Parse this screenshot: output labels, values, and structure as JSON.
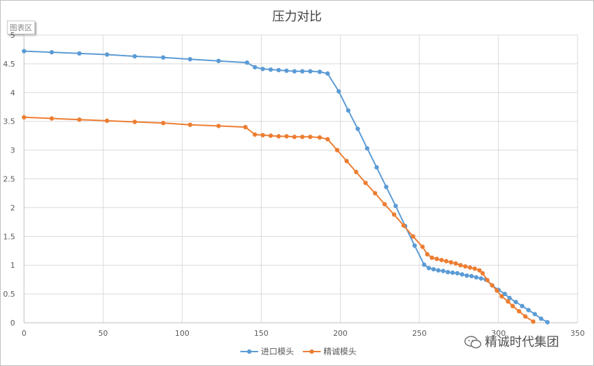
{
  "chart_area_label": "图表区",
  "watermark": "精诚时代集团",
  "chart_data": {
    "type": "line",
    "title": "压力对比",
    "xlabel": "",
    "ylabel": "",
    "xlim": [
      0,
      350
    ],
    "ylim": [
      0,
      5
    ],
    "x_ticks": [
      0,
      50,
      100,
      150,
      200,
      250,
      300,
      350
    ],
    "y_ticks": [
      0,
      0.5,
      1,
      1.5,
      2,
      2.5,
      3,
      3.5,
      4,
      4.5,
      5
    ],
    "grid": true,
    "legend_position": "bottom",
    "series": [
      {
        "name": "进口模头",
        "color": "#5b9bd5",
        "points": [
          [
            0,
            4.72
          ],
          [
            17.5,
            4.7
          ],
          [
            35,
            4.68
          ],
          [
            52.5,
            4.66
          ],
          [
            70,
            4.63
          ],
          [
            88,
            4.61
          ],
          [
            105,
            4.58
          ],
          [
            123,
            4.55
          ],
          [
            141,
            4.52
          ],
          [
            146,
            4.44
          ],
          [
            151,
            4.41
          ],
          [
            156,
            4.4
          ],
          [
            161,
            4.39
          ],
          [
            166,
            4.38
          ],
          [
            171,
            4.37
          ],
          [
            176,
            4.37
          ],
          [
            181,
            4.37
          ],
          [
            187,
            4.36
          ],
          [
            192,
            4.33
          ],
          [
            199,
            4.02
          ],
          [
            205,
            3.69
          ],
          [
            211,
            3.37
          ],
          [
            217,
            3.03
          ],
          [
            223,
            2.7
          ],
          [
            229,
            2.36
          ],
          [
            235,
            2.03
          ],
          [
            241,
            1.68
          ],
          [
            247,
            1.34
          ],
          [
            253,
            1.01
          ],
          [
            256,
            0.95
          ],
          [
            259,
            0.93
          ],
          [
            262,
            0.91
          ],
          [
            265,
            0.9
          ],
          [
            268,
            0.88
          ],
          [
            271,
            0.87
          ],
          [
            274,
            0.86
          ],
          [
            277,
            0.84
          ],
          [
            280,
            0.82
          ],
          [
            283,
            0.81
          ],
          [
            286,
            0.79
          ],
          [
            289,
            0.77
          ],
          [
            292,
            0.75
          ],
          [
            296,
            0.65
          ],
          [
            300,
            0.57
          ],
          [
            304,
            0.5
          ],
          [
            307,
            0.43
          ],
          [
            311,
            0.36
          ],
          [
            315,
            0.29
          ],
          [
            319,
            0.22
          ],
          [
            323,
            0.15
          ],
          [
            327,
            0.07
          ],
          [
            331,
            0.01
          ]
        ]
      },
      {
        "name": "精诚模头",
        "color": "#ed7d31",
        "points": [
          [
            0,
            3.57
          ],
          [
            17.5,
            3.55
          ],
          [
            35,
            3.53
          ],
          [
            52.5,
            3.51
          ],
          [
            70,
            3.49
          ],
          [
            88,
            3.47
          ],
          [
            105,
            3.44
          ],
          [
            123,
            3.42
          ],
          [
            140,
            3.4
          ],
          [
            146,
            3.27
          ],
          [
            151,
            3.26
          ],
          [
            156,
            3.25
          ],
          [
            161,
            3.24
          ],
          [
            166,
            3.24
          ],
          [
            171,
            3.23
          ],
          [
            176,
            3.23
          ],
          [
            181,
            3.23
          ],
          [
            187,
            3.22
          ],
          [
            192,
            3.19
          ],
          [
            198,
            3.0
          ],
          [
            204,
            2.81
          ],
          [
            210,
            2.62
          ],
          [
            216,
            2.43
          ],
          [
            222,
            2.25
          ],
          [
            228,
            2.06
          ],
          [
            234,
            1.88
          ],
          [
            240,
            1.69
          ],
          [
            246,
            1.5
          ],
          [
            252,
            1.32
          ],
          [
            255,
            1.19
          ],
          [
            258,
            1.13
          ],
          [
            261,
            1.11
          ],
          [
            264,
            1.09
          ],
          [
            267,
            1.07
          ],
          [
            270,
            1.05
          ],
          [
            273,
            1.03
          ],
          [
            276,
            1.0
          ],
          [
            279,
            0.98
          ],
          [
            282,
            0.96
          ],
          [
            285,
            0.94
          ],
          [
            288,
            0.91
          ],
          [
            290,
            0.86
          ],
          [
            293,
            0.74
          ],
          [
            296,
            0.65
          ],
          [
            299,
            0.56
          ],
          [
            302,
            0.46
          ],
          [
            306,
            0.37
          ],
          [
            309,
            0.29
          ],
          [
            313,
            0.2
          ],
          [
            317,
            0.11
          ],
          [
            322,
            0.02
          ]
        ]
      }
    ]
  }
}
